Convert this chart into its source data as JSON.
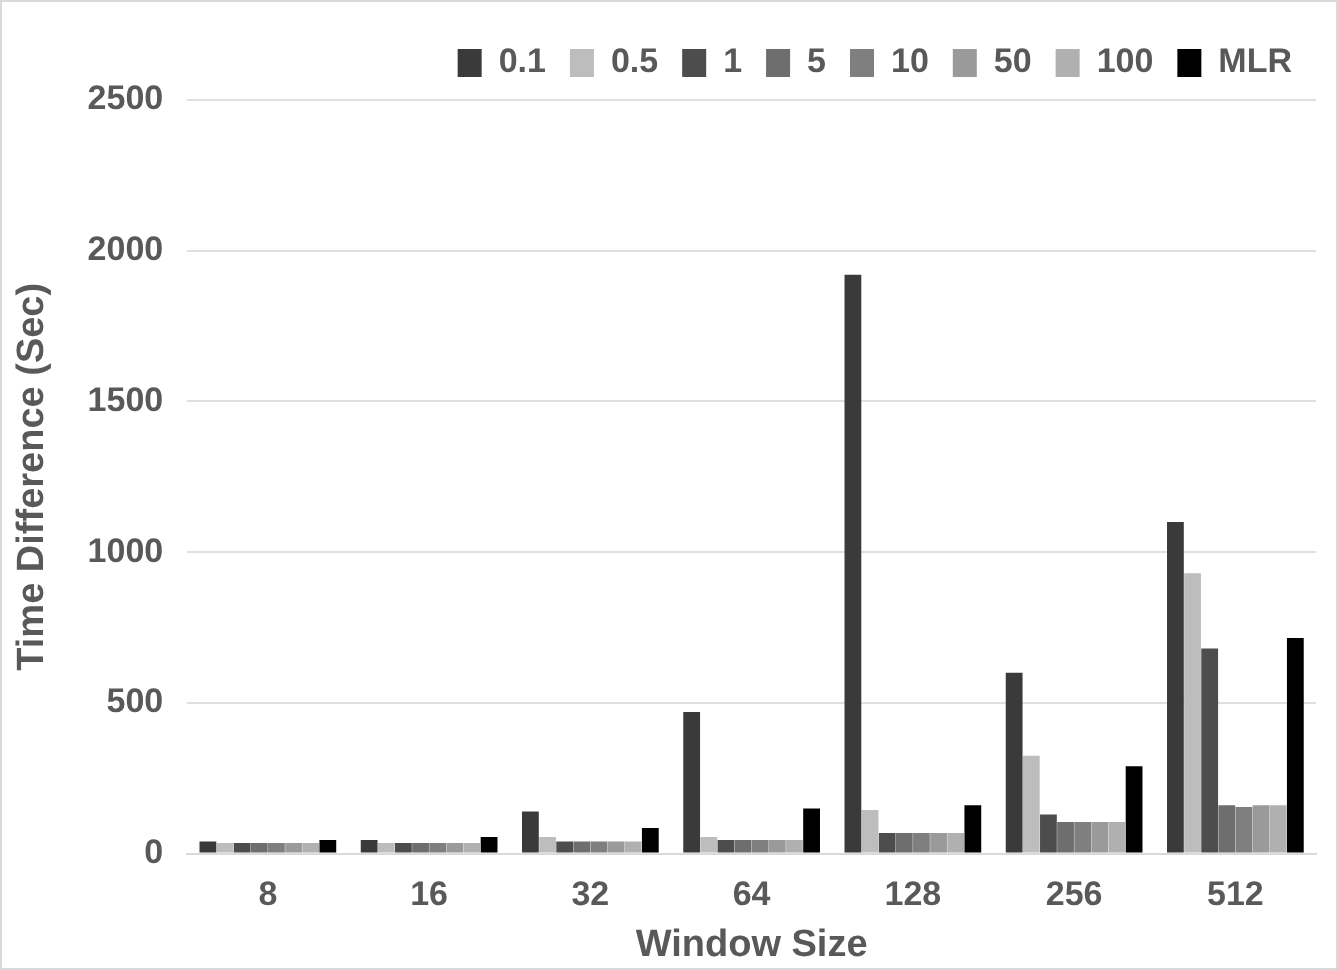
{
  "chart_data": {
    "type": "bar",
    "xlabel": "Window Size",
    "ylabel": "Time Difference (Sec)",
    "categories": [
      "8",
      "16",
      "32",
      "64",
      "128",
      "256",
      "512"
    ],
    "series": [
      {
        "name": "0.1",
        "color": "#3a3a3a",
        "values": [
          40,
          45,
          140,
          470,
          1920,
          600,
          1100
        ]
      },
      {
        "name": "0.5",
        "color": "#bdbdbd",
        "values": [
          35,
          35,
          55,
          55,
          145,
          325,
          930
        ]
      },
      {
        "name": "1",
        "color": "#4d4d4d",
        "values": [
          35,
          35,
          40,
          45,
          68,
          130,
          680
        ]
      },
      {
        "name": "5",
        "color": "#6e6e6e",
        "values": [
          35,
          35,
          40,
          45,
          68,
          105,
          160
        ]
      },
      {
        "name": "10",
        "color": "#7f7f7f",
        "values": [
          35,
          35,
          40,
          45,
          68,
          105,
          155
        ]
      },
      {
        "name": "50",
        "color": "#9a9a9a",
        "values": [
          35,
          35,
          40,
          45,
          68,
          105,
          160
        ]
      },
      {
        "name": "100",
        "color": "#b0b0b0",
        "values": [
          35,
          35,
          40,
          45,
          68,
          105,
          160
        ]
      },
      {
        "name": "MLR",
        "color": "#000000",
        "values": [
          45,
          55,
          85,
          150,
          160,
          290,
          715
        ]
      }
    ],
    "ylim": [
      0,
      2500
    ],
    "yticks": [
      0,
      500,
      1000,
      1500,
      2000,
      2500
    ],
    "grid": "y",
    "legend": "top right"
  }
}
